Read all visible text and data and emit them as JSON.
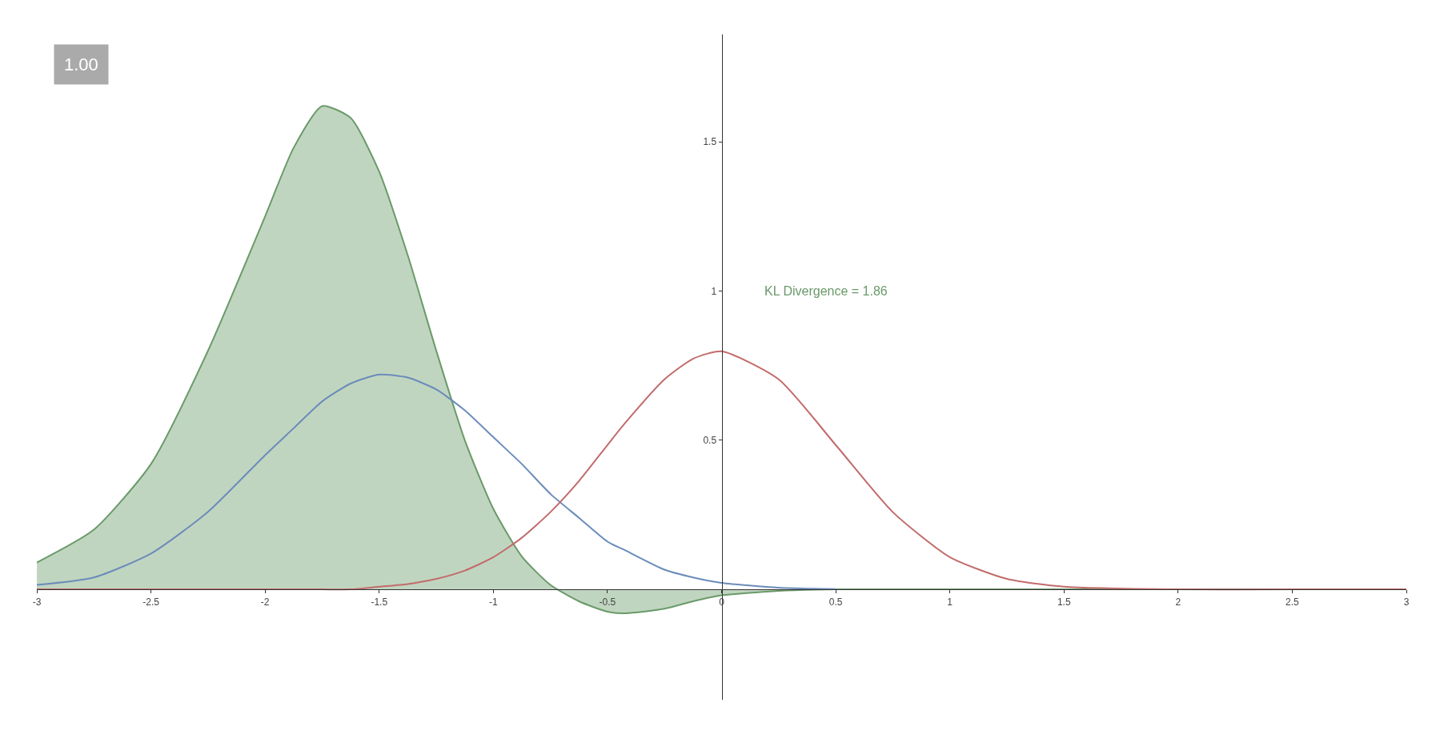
{
  "chart_data": {
    "type": "line",
    "x": [
      -3,
      -2.75,
      -2.5,
      -2.25,
      -2,
      -1.875,
      -1.75,
      -1.625,
      -1.5,
      -1.375,
      -1.25,
      -1.125,
      -1,
      -0.875,
      -0.75,
      -0.625,
      -0.5,
      -0.42,
      -0.25,
      -0.125,
      0,
      0.25,
      0.5,
      0.75,
      1,
      1.25,
      1.5,
      2,
      2.5,
      3
    ],
    "series": [
      {
        "color": "#6b8cba",
        "values": [
          0.015,
          0.04,
          0.12,
          0.26,
          0.45,
          0.54,
          0.63,
          0.69,
          0.72,
          0.71,
          0.67,
          0.6,
          0.51,
          0.42,
          0.32,
          0.24,
          0.16,
          0.13,
          0.066,
          0.04,
          0.022,
          0.006,
          0.001,
          null,
          null,
          null,
          null,
          null,
          null,
          null
        ]
      },
      {
        "color": "#c26b6b",
        "values": [
          0,
          0,
          0,
          0,
          0,
          0,
          0,
          0,
          0.009,
          0.018,
          0.035,
          0.063,
          0.108,
          0.173,
          0.259,
          0.363,
          0.484,
          0.56,
          0.704,
          0.773,
          0.798,
          0.704,
          0.484,
          0.259,
          0.108,
          0.035,
          0.009,
          0,
          0,
          0
        ]
      },
      {
        "type": "area",
        "color": "#6a9a6a",
        "values": [
          0.09,
          0.2,
          0.42,
          0.8,
          1.25,
          1.48,
          1.62,
          1.58,
          1.4,
          1.12,
          0.8,
          0.5,
          0.27,
          0.11,
          0.015,
          -0.04,
          -0.075,
          -0.08,
          -0.065,
          -0.04,
          -0.02,
          -0.005,
          0,
          0,
          0,
          0,
          0,
          0,
          0,
          0
        ]
      }
    ],
    "xlim": [
      -3,
      3
    ],
    "ylim": [
      -0.37,
      1.86
    ],
    "xticks": [
      -3,
      -2.5,
      -2,
      -1.5,
      -1,
      -0.5,
      0,
      0.5,
      1,
      1.5,
      2,
      2.5,
      3
    ],
    "yticks": [
      0.5,
      1,
      1.5
    ],
    "annotations": [
      "1.00",
      "KL Divergence = 1.86"
    ],
    "grid": false
  }
}
